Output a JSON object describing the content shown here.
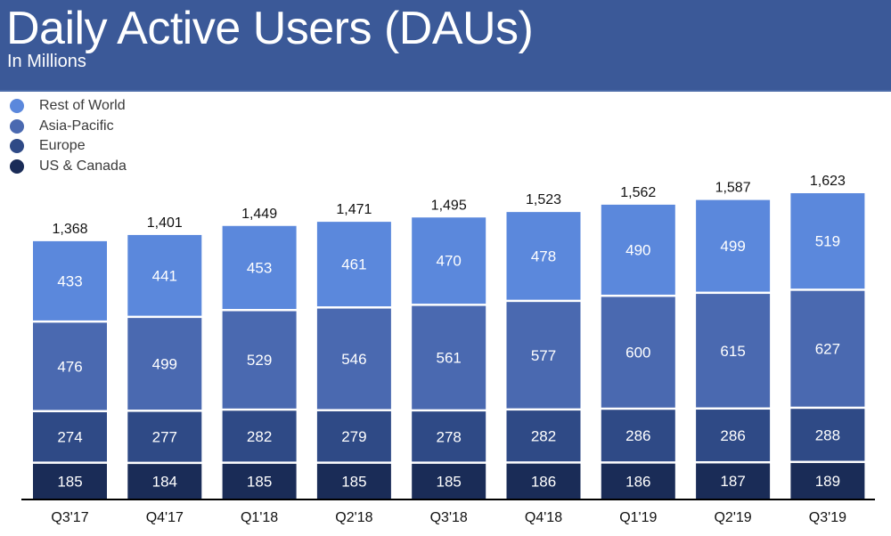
{
  "header": {
    "title": "Daily Active Users (DAUs)",
    "subtitle": "In Millions",
    "background_color": "#3b5998"
  },
  "legend": [
    {
      "label": "Rest of World",
      "color": "#5b88dc"
    },
    {
      "label": "Asia-Pacific",
      "color": "#4a69b0"
    },
    {
      "label": "Europe",
      "color": "#2f4a86"
    },
    {
      "label": "US & Canada",
      "color": "#1a2c57"
    }
  ],
  "chart_data": {
    "type": "bar",
    "stacked": true,
    "title": "Daily Active Users (DAUs)",
    "subtitle": "In Millions",
    "xlabel": "",
    "ylabel": "",
    "categories": [
      "Q3'17",
      "Q4'17",
      "Q1'18",
      "Q2'18",
      "Q3'18",
      "Q4'18",
      "Q1'19",
      "Q2'19",
      "Q3'19"
    ],
    "series": [
      {
        "name": "US & Canada",
        "color": "#1a2c57",
        "values": [
          185,
          184,
          185,
          185,
          185,
          186,
          186,
          187,
          189
        ]
      },
      {
        "name": "Europe",
        "color": "#2f4a86",
        "values": [
          274,
          277,
          282,
          279,
          278,
          282,
          286,
          286,
          288
        ]
      },
      {
        "name": "Asia-Pacific",
        "color": "#4a69b0",
        "values": [
          476,
          499,
          529,
          546,
          561,
          577,
          600,
          615,
          627
        ]
      },
      {
        "name": "Rest of World",
        "color": "#5b88dc",
        "values": [
          433,
          441,
          453,
          461,
          470,
          478,
          490,
          499,
          519
        ]
      }
    ],
    "totals": [
      "1,368",
      "1,401",
      "1,449",
      "1,471",
      "1,495",
      "1,523",
      "1,562",
      "1,587",
      "1,623"
    ],
    "ylim": [
      0,
      1623
    ],
    "grid": false,
    "legend_position": "top-left",
    "axis_line_color": "#000000"
  }
}
